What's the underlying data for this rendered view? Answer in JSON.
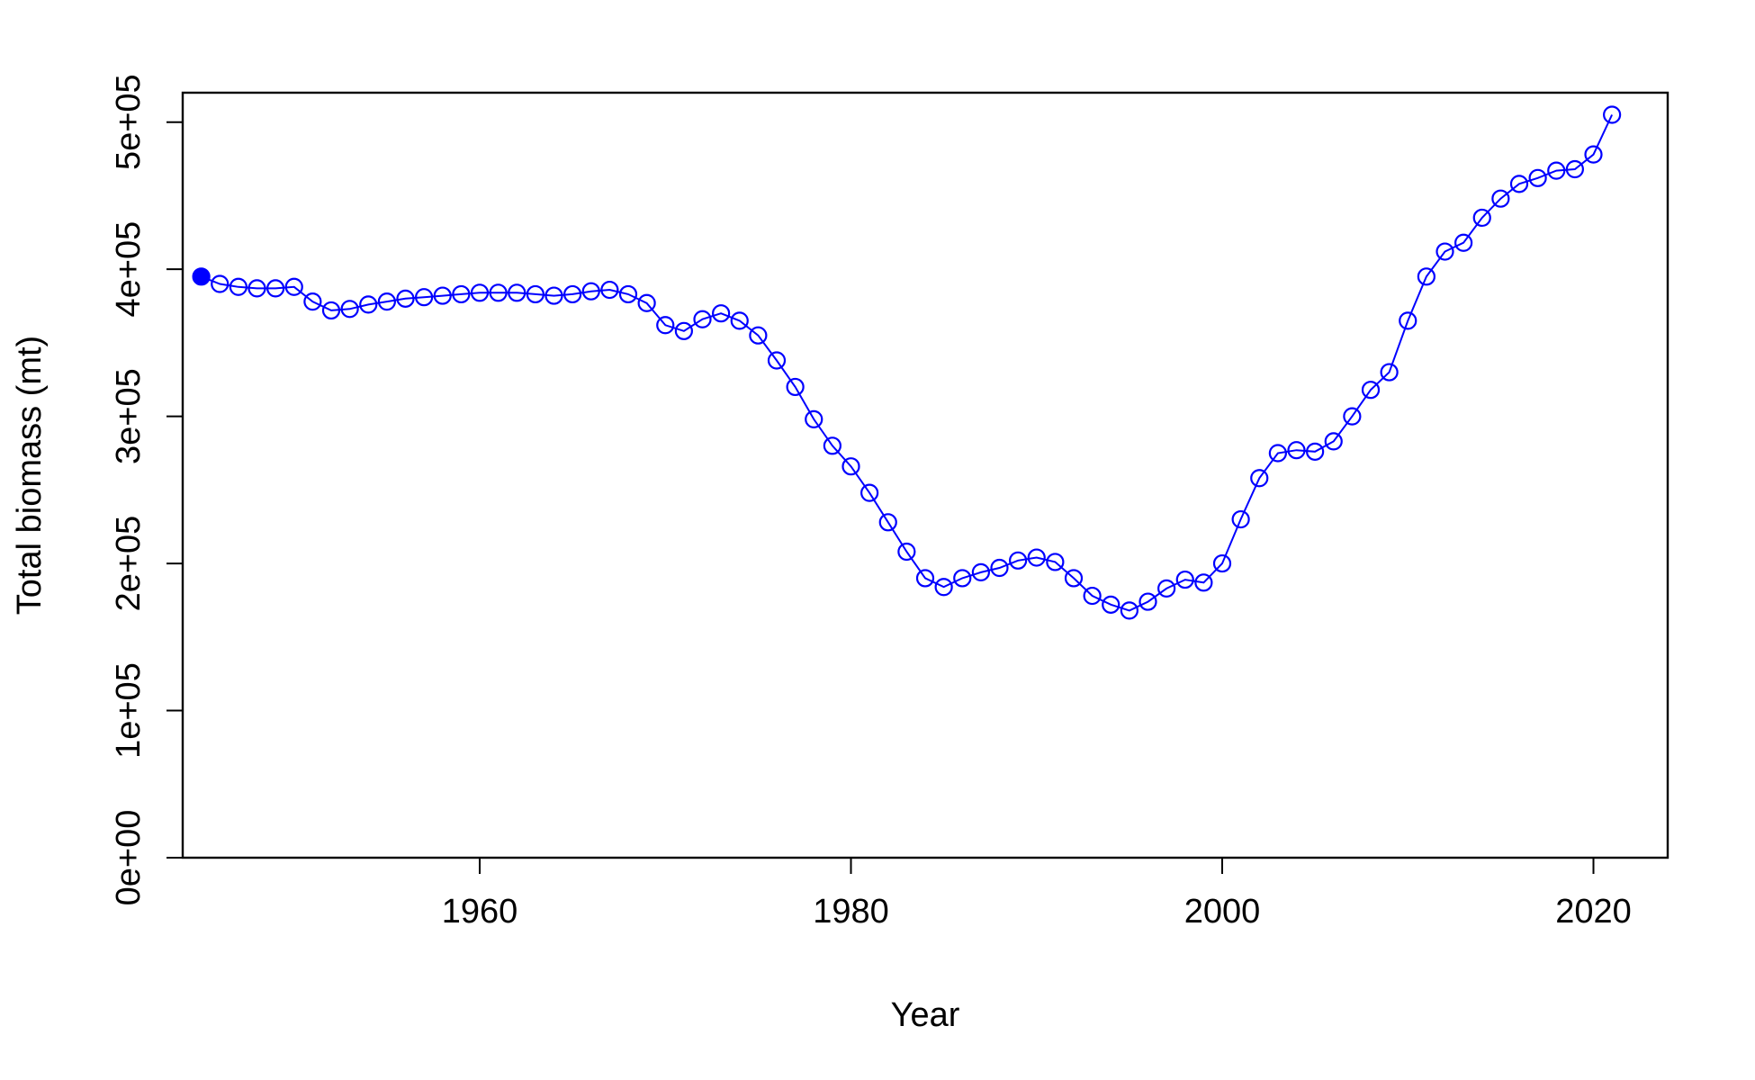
{
  "chart_data": {
    "type": "line",
    "title": "",
    "xlabel": "Year",
    "ylabel": "Total biomass (mt)",
    "xlim": [
      1944,
      2024
    ],
    "ylim": [
      0,
      520000
    ],
    "x_ticks": [
      1960,
      1980,
      2000,
      2020
    ],
    "x_tick_labels": [
      "1960",
      "1980",
      "2000",
      "2020"
    ],
    "y_ticks": [
      0,
      100000,
      200000,
      300000,
      400000,
      500000
    ],
    "y_tick_labels": [
      "0e+00",
      "1e+05",
      "2e+05",
      "3e+05",
      "4e+05",
      "5e+05"
    ],
    "grid": false,
    "legend": "none",
    "marker": "open-circle",
    "first_point_filled": true,
    "series_color": "#0000FF",
    "x": [
      1945,
      1946,
      1947,
      1948,
      1949,
      1950,
      1951,
      1952,
      1953,
      1954,
      1955,
      1956,
      1957,
      1958,
      1959,
      1960,
      1961,
      1962,
      1963,
      1964,
      1965,
      1966,
      1967,
      1968,
      1969,
      1970,
      1971,
      1972,
      1973,
      1974,
      1975,
      1976,
      1977,
      1978,
      1979,
      1980,
      1981,
      1982,
      1983,
      1984,
      1985,
      1986,
      1987,
      1988,
      1989,
      1990,
      1991,
      1992,
      1993,
      1994,
      1995,
      1996,
      1997,
      1998,
      1999,
      2000,
      2001,
      2002,
      2003,
      2004,
      2005,
      2006,
      2007,
      2008,
      2009,
      2010,
      2011,
      2012,
      2013,
      2014,
      2015,
      2016,
      2017,
      2018,
      2019,
      2020,
      2021
    ],
    "y": [
      395000,
      390000,
      388000,
      387000,
      387000,
      388000,
      378000,
      372000,
      373000,
      376000,
      378000,
      380000,
      381000,
      382000,
      383000,
      384000,
      384000,
      384000,
      383000,
      382000,
      383000,
      385000,
      386000,
      383000,
      377000,
      362000,
      358000,
      366000,
      370000,
      365000,
      355000,
      338000,
      320000,
      298000,
      280000,
      266000,
      248000,
      228000,
      208000,
      190000,
      184000,
      190000,
      194000,
      197000,
      202000,
      204000,
      201000,
      190000,
      178000,
      172000,
      168000,
      174000,
      183000,
      189000,
      187000,
      200000,
      230000,
      258000,
      275000,
      277000,
      276000,
      283000,
      300000,
      318000,
      330000,
      365000,
      395000,
      412000,
      418000,
      435000,
      448000,
      458000,
      462000,
      467000,
      468000,
      478000,
      505000
    ]
  }
}
